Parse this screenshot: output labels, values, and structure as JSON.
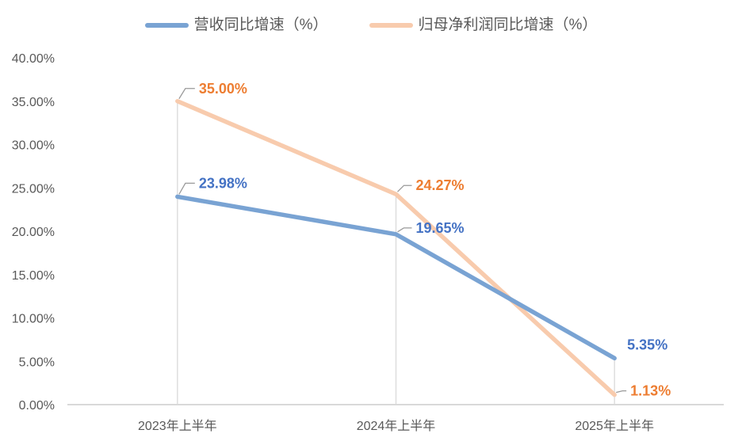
{
  "chart_data": {
    "type": "line",
    "title": "",
    "categories": [
      "2023年上半年",
      "2024年上半年",
      "2025年上半年"
    ],
    "series": [
      {
        "name": "营收同比增速（%）",
        "color": "#79A3D3",
        "label_color": "#4472C4",
        "values": [
          23.98,
          19.65,
          5.35
        ],
        "labels": [
          "23.98%",
          "19.65%",
          "5.35%"
        ]
      },
      {
        "name": "归母净利润同比增速（%）",
        "color": "#F8CBAD",
        "label_color": "#ED7D31",
        "values": [
          35.0,
          24.27,
          1.13
        ],
        "labels": [
          "35.00%",
          "24.27%",
          "1.13%"
        ]
      }
    ],
    "y_ticks": [
      "0.00%",
      "5.00%",
      "10.00%",
      "15.00%",
      "20.00%",
      "25.00%",
      "30.00%",
      "35.00%",
      "40.00%"
    ],
    "ylim": [
      0,
      40
    ],
    "xlabel": "",
    "ylabel": "",
    "grid": "off",
    "legend_position": "top",
    "colors": {
      "axis_line": "#D9D9D9",
      "drop_line": "#D9D9D9",
      "leader_line": "#999999",
      "tick_text": "#595959",
      "legend_text": "#595959",
      "background": "#FFFFFF"
    }
  }
}
